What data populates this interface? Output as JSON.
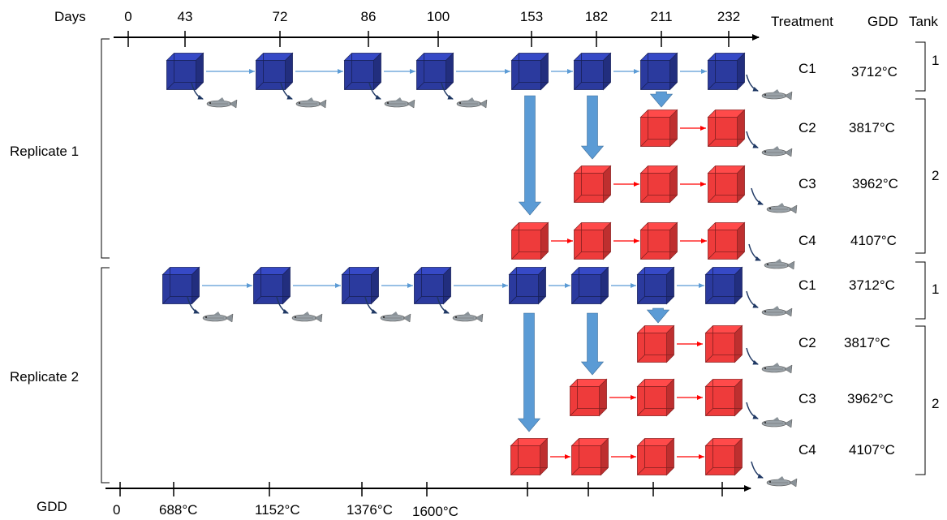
{
  "header": {
    "days_label": "Days",
    "treatment_label": "Treatment",
    "gdd_label": "GDD",
    "tank_label": "Tank"
  },
  "days_ticks": [
    "0",
    "43",
    "72",
    "86",
    "100",
    "153",
    "182",
    "211",
    "232"
  ],
  "gdd_axis": {
    "label": "GDD",
    "ticks": [
      "0",
      "688°C",
      "1152°C",
      "1376°C",
      "1600°C"
    ]
  },
  "replicates": [
    {
      "label": "Replicate 1",
      "rows": [
        {
          "treatment": "C1",
          "gdd": "3712°C"
        },
        {
          "treatment": "C2",
          "gdd": "3817°C"
        },
        {
          "treatment": "C3",
          "gdd": "3962°C"
        },
        {
          "treatment": "C4",
          "gdd": "4107°C"
        }
      ],
      "tanks": [
        "1",
        "2"
      ]
    },
    {
      "label": "Replicate 2",
      "rows": [
        {
          "treatment": "C1",
          "gdd": "3712°C"
        },
        {
          "treatment": "C2",
          "gdd": "3817°C"
        },
        {
          "treatment": "C3",
          "gdd": "3962°C"
        },
        {
          "treatment": "C4",
          "gdd": "4107°C"
        }
      ],
      "tanks": [
        "1",
        "2"
      ]
    }
  ],
  "colors": {
    "control_tank": "#2b3a9e",
    "heated_tank": "#ee3b3b",
    "transfer_arrow": "#5b9bd5",
    "control_flow": "#5b9bd5",
    "heated_flow": "#ff0000",
    "fish_arrow": "#1f3864"
  },
  "icons": {
    "tank": "cube-icon",
    "fish": "fish-icon"
  }
}
